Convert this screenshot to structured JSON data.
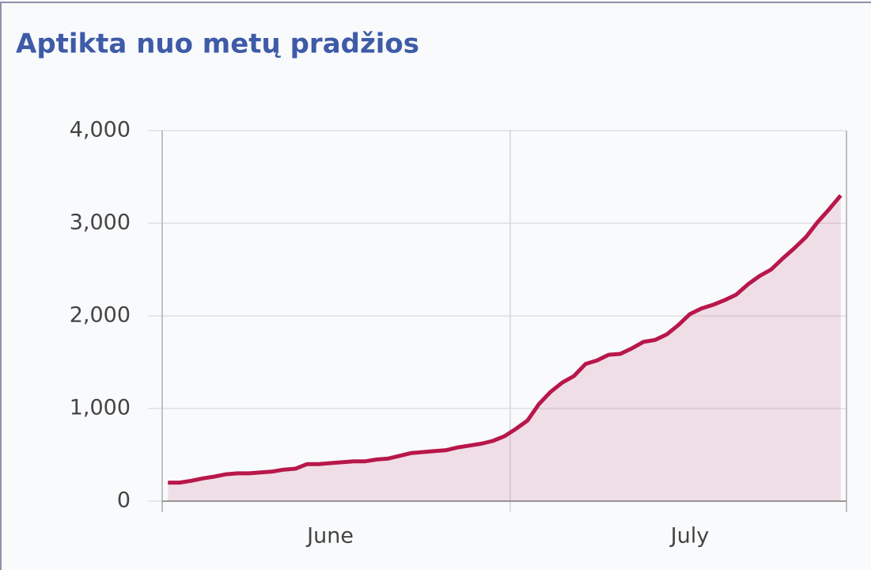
{
  "chart_data": {
    "type": "area",
    "title": "Aptikta nuo metų pradžios",
    "categories": [
      null,
      null,
      null,
      null,
      null,
      null,
      null,
      null,
      null,
      null,
      null,
      null,
      null,
      null,
      "June",
      null,
      null,
      null,
      null,
      null,
      null,
      null,
      null,
      null,
      null,
      null,
      null,
      null,
      null,
      null,
      null,
      null,
      null,
      null,
      null,
      null,
      null,
      null,
      null,
      null,
      null,
      null,
      null,
      null,
      null,
      "July",
      null,
      null,
      null,
      null,
      null,
      null,
      null,
      null,
      null,
      null,
      null,
      null,
      null
    ],
    "month_boundaries": [
      0,
      30,
      59
    ],
    "series": [
      {
        "name": "Aptikta",
        "color": "#b8174a",
        "values": [
          200,
          200,
          220,
          245,
          265,
          290,
          300,
          300,
          310,
          320,
          340,
          350,
          400,
          400,
          410,
          420,
          430,
          430,
          450,
          460,
          490,
          520,
          530,
          540,
          550,
          580,
          600,
          620,
          650,
          700,
          780,
          870,
          1050,
          1180,
          1280,
          1350,
          1480,
          1520,
          1580,
          1590,
          1650,
          1720,
          1740,
          1800,
          1900,
          2020,
          2080,
          2120,
          2170,
          2230,
          2340,
          2430,
          2500,
          2620,
          2730,
          2850,
          3010,
          3150,
          3300
        ]
      }
    ],
    "ylim": [
      0,
      4000
    ],
    "yticks": [
      0,
      {
        "value": 1000,
        "label": "1,000"
      },
      {
        "value": 2000,
        "label": "2,000"
      },
      {
        "value": 3000,
        "label": "3,000"
      },
      {
        "value": 4000,
        "label": "4,000"
      }
    ],
    "grid": true
  }
}
